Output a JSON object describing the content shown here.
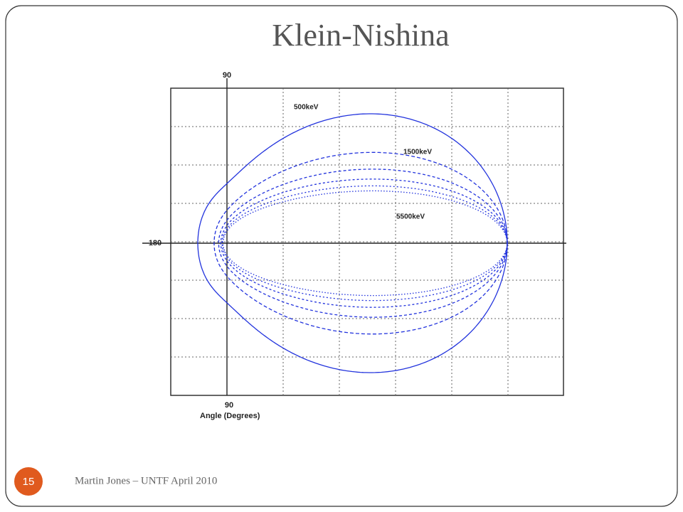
{
  "slide": {
    "title": "Klein-Nishina",
    "plot": {
      "top_angle": "90",
      "left_angle": "180",
      "bottom_angle": "90",
      "axis_label": "Angle (Degrees)",
      "curve_labels": [
        "500keV",
        "1500keV",
        "5500keV"
      ]
    },
    "footer": "Martin Jones – UNTF April 2010",
    "page_number": "15"
  }
}
